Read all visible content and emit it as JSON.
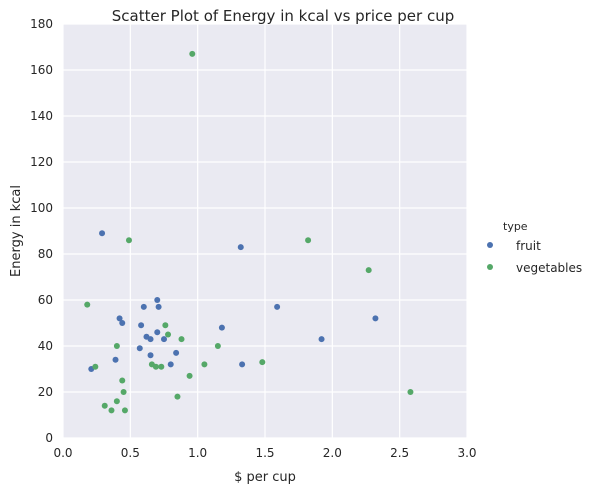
{
  "chart_data": {
    "type": "scatter",
    "title": "Scatter Plot of Energy in kcal vs price per cup",
    "xlabel": "$ per cup",
    "ylabel": "Energy in kcal",
    "xlim": [
      0.0,
      3.0
    ],
    "ylim": [
      0,
      180
    ],
    "xticks": [
      "0.0",
      "0.5",
      "1.0",
      "1.5",
      "2.0",
      "2.5",
      "3.0"
    ],
    "yticks": [
      "0",
      "20",
      "40",
      "60",
      "80",
      "100",
      "120",
      "140",
      "160",
      "180"
    ],
    "grid": true,
    "legend": {
      "title": "type",
      "placement": "right"
    },
    "series": [
      {
        "name": "fruit",
        "color": "#4c72b0",
        "points": [
          [
            0.29,
            89
          ],
          [
            0.21,
            30
          ],
          [
            0.39,
            34
          ],
          [
            0.42,
            52
          ],
          [
            0.44,
            50
          ],
          [
            0.57,
            39
          ],
          [
            0.58,
            49
          ],
          [
            0.6,
            57
          ],
          [
            0.62,
            44
          ],
          [
            0.65,
            43
          ],
          [
            0.65,
            36
          ],
          [
            0.7,
            60
          ],
          [
            0.71,
            57
          ],
          [
            0.7,
            46
          ],
          [
            0.75,
            43
          ],
          [
            0.8,
            32
          ],
          [
            0.84,
            37
          ],
          [
            1.18,
            48
          ],
          [
            1.32,
            83
          ],
          [
            1.33,
            32
          ],
          [
            1.59,
            57
          ],
          [
            1.92,
            43
          ],
          [
            2.32,
            52
          ]
        ]
      },
      {
        "name": "vegetables",
        "color": "#55a868",
        "points": [
          [
            0.96,
            167
          ],
          [
            0.49,
            86
          ],
          [
            1.82,
            86
          ],
          [
            2.27,
            73
          ],
          [
            0.18,
            58
          ],
          [
            0.76,
            49
          ],
          [
            0.78,
            45
          ],
          [
            0.88,
            43
          ],
          [
            0.4,
            40
          ],
          [
            1.15,
            40
          ],
          [
            1.48,
            33
          ],
          [
            1.05,
            32
          ],
          [
            0.66,
            32
          ],
          [
            0.69,
            31
          ],
          [
            0.73,
            31
          ],
          [
            0.94,
            27
          ],
          [
            0.24,
            31
          ],
          [
            0.44,
            25
          ],
          [
            0.45,
            20
          ],
          [
            2.58,
            20
          ],
          [
            0.85,
            18
          ],
          [
            0.4,
            16
          ],
          [
            0.31,
            14
          ],
          [
            0.36,
            12
          ],
          [
            0.46,
            12
          ]
        ]
      }
    ]
  }
}
